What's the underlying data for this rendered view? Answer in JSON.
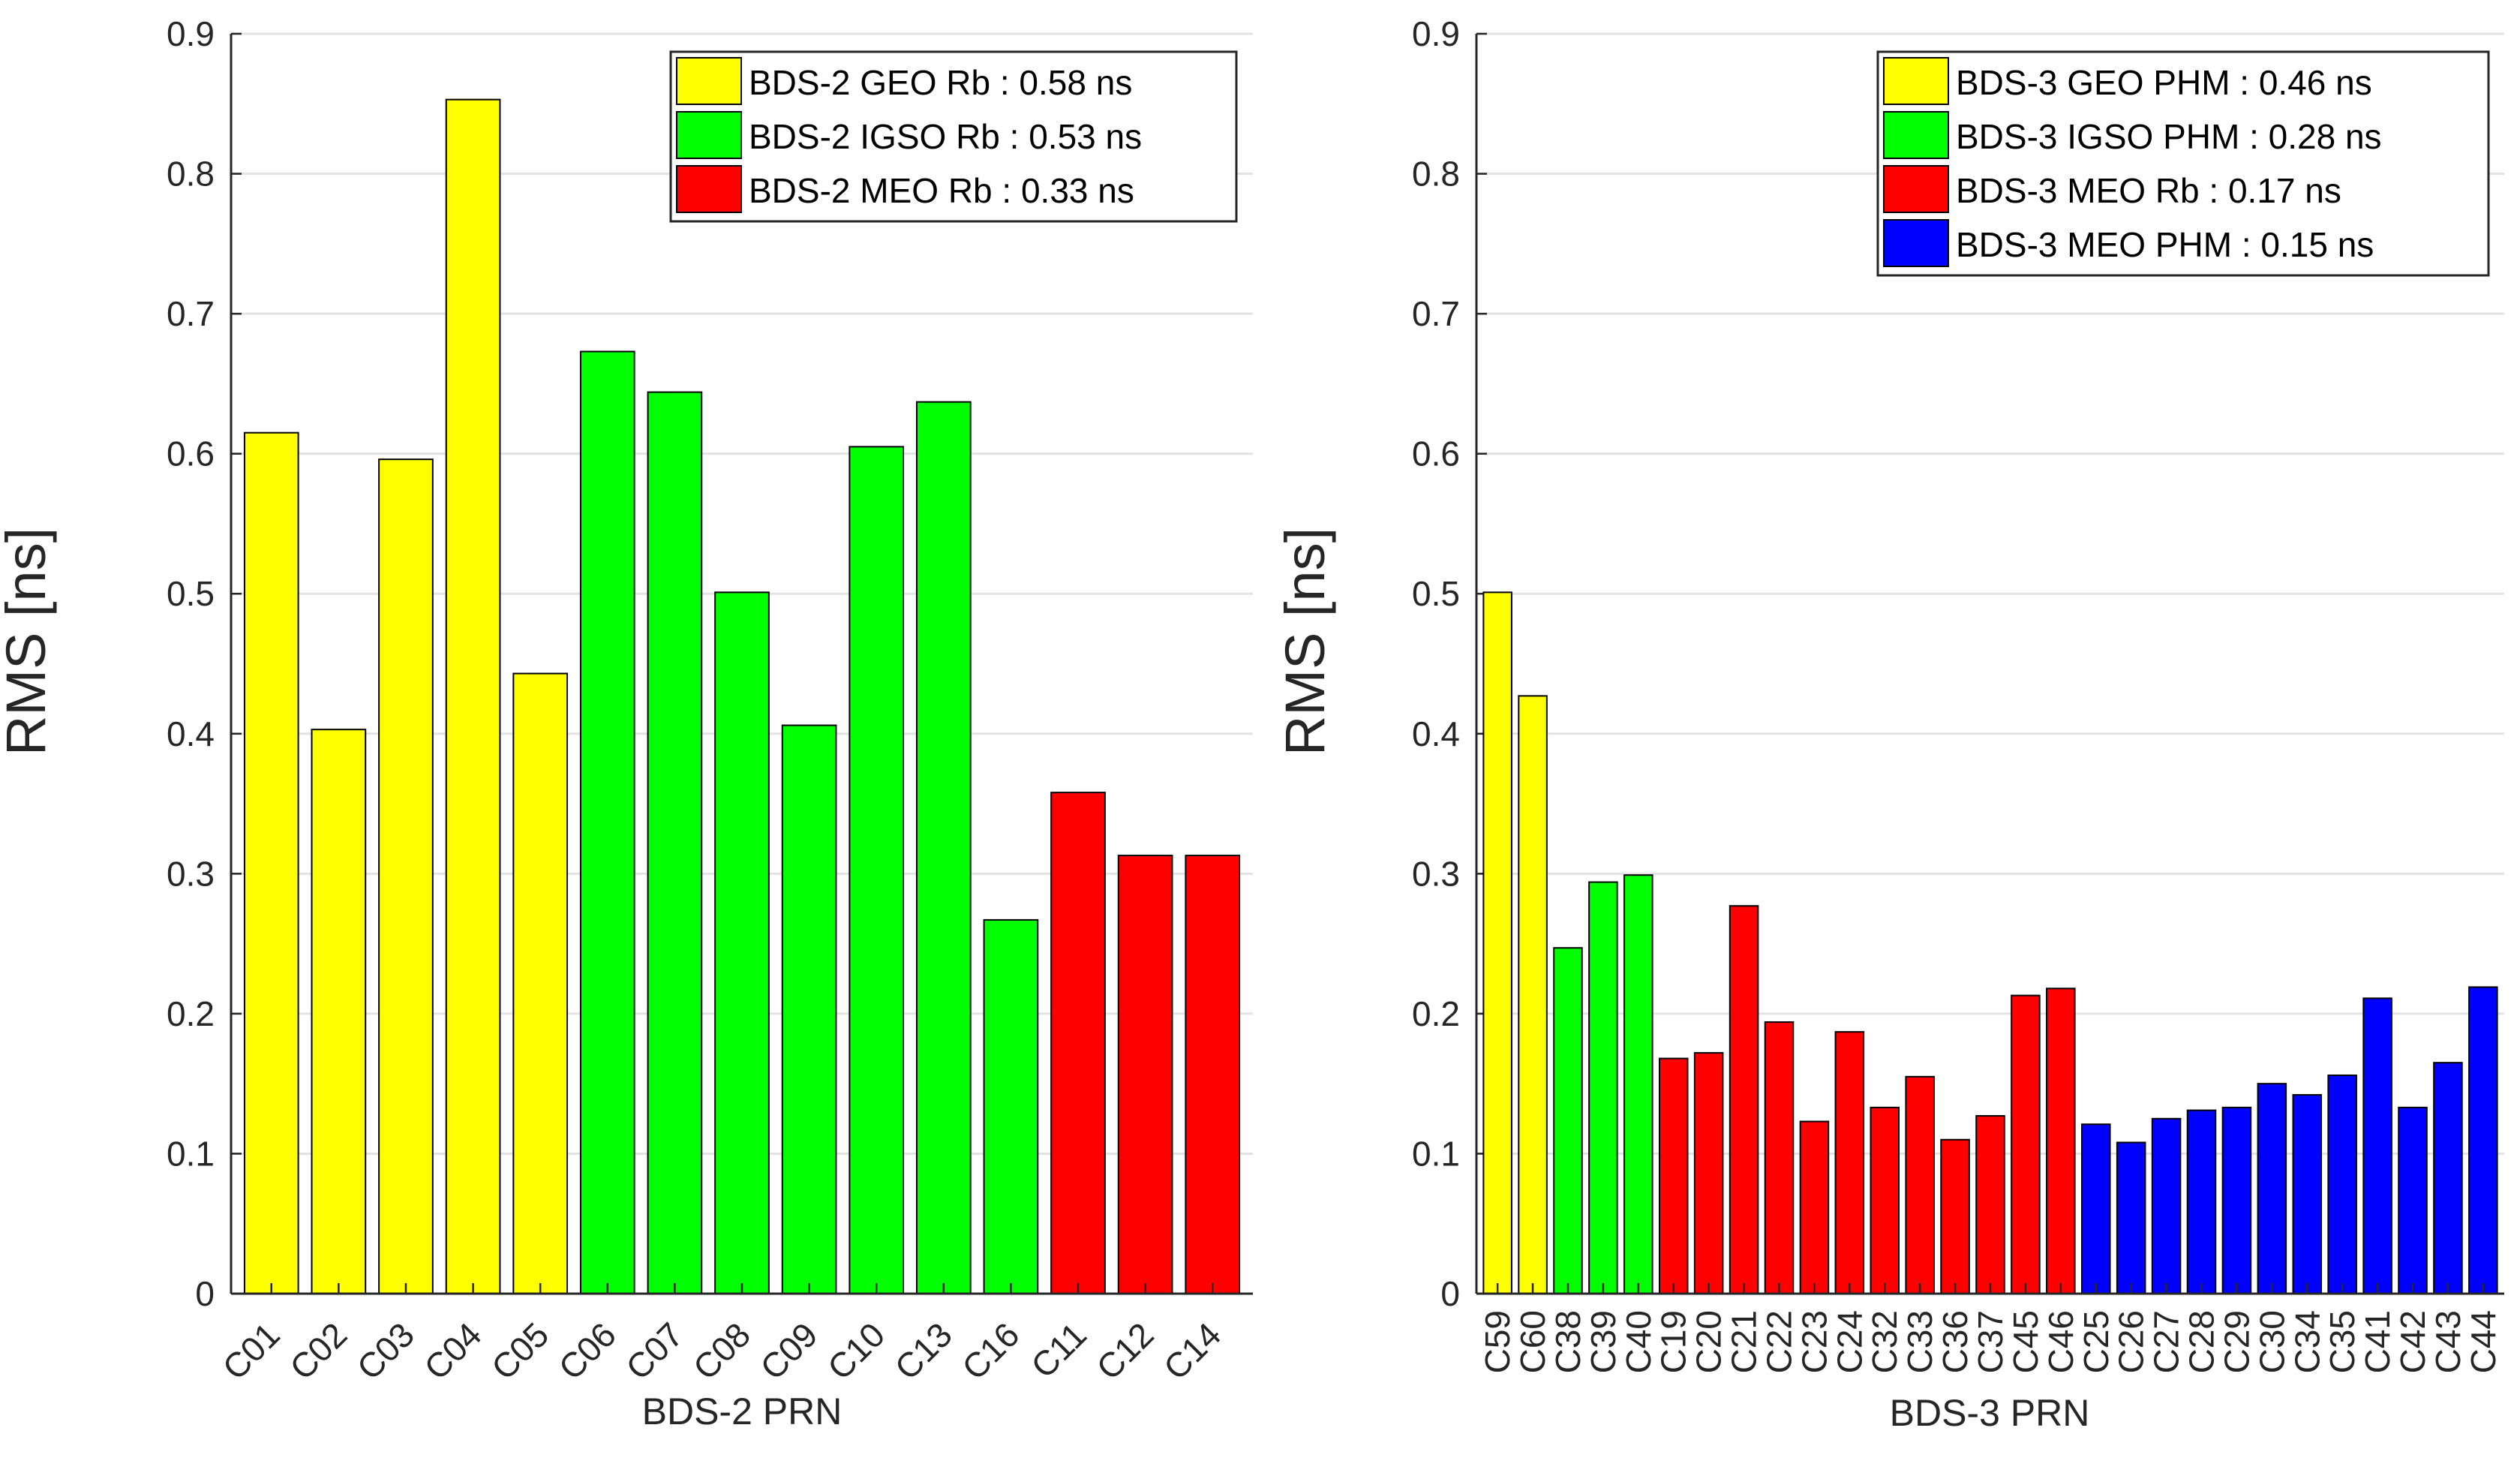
{
  "chart_data": [
    {
      "type": "bar",
      "xlabel": "BDS-2 PRN",
      "ylabel": "RMS [ns]",
      "ylim": [
        0,
        0.9
      ],
      "yticks": [
        "0",
        "0.1",
        "0.2",
        "0.3",
        "0.4",
        "0.5",
        "0.6",
        "0.7",
        "0.8",
        "0.9"
      ],
      "grid": true,
      "legend_position": "top-right",
      "categories": [
        "C01",
        "C02",
        "C03",
        "C04",
        "C05",
        "C06",
        "C07",
        "C08",
        "C09",
        "C10",
        "C13",
        "C16",
        "C11",
        "C12",
        "C14"
      ],
      "values": [
        0.615,
        0.403,
        0.596,
        0.853,
        0.443,
        0.673,
        0.644,
        0.501,
        0.406,
        0.605,
        0.637,
        0.267,
        0.358,
        0.313,
        0.313
      ],
      "groups": [
        "GEO",
        "GEO",
        "GEO",
        "GEO",
        "GEO",
        "IGSO",
        "IGSO",
        "IGSO",
        "IGSO",
        "IGSO",
        "IGSO",
        "IGSO",
        "MEO",
        "MEO",
        "MEO"
      ],
      "legend": [
        {
          "label": "BDS-2 GEO Rb : 0.58 ns",
          "group": "GEO",
          "color": "#ffff00"
        },
        {
          "label": "BDS-2 IGSO Rb : 0.53 ns",
          "group": "IGSO",
          "color": "#00ff00"
        },
        {
          "label": "BDS-2 MEO Rb : 0.33 ns",
          "group": "MEO",
          "color": "#ff0000"
        }
      ]
    },
    {
      "type": "bar",
      "xlabel": "BDS-3 PRN",
      "ylabel": "RMS [ns]",
      "ylim": [
        0,
        0.9
      ],
      "yticks": [
        "0",
        "0.1",
        "0.2",
        "0.3",
        "0.4",
        "0.5",
        "0.6",
        "0.7",
        "0.8",
        "0.9"
      ],
      "grid": true,
      "legend_position": "top-right",
      "categories": [
        "C59",
        "C60",
        "C38",
        "C39",
        "C40",
        "C19",
        "C20",
        "C21",
        "C22",
        "C23",
        "C24",
        "C32",
        "C33",
        "C36",
        "C37",
        "C45",
        "C46",
        "C25",
        "C26",
        "C27",
        "C28",
        "C29",
        "C30",
        "C34",
        "C35",
        "C41",
        "C42",
        "C43",
        "C44"
      ],
      "values": [
        0.501,
        0.427,
        0.247,
        0.294,
        0.299,
        0.168,
        0.172,
        0.277,
        0.194,
        0.123,
        0.187,
        0.133,
        0.155,
        0.11,
        0.127,
        0.213,
        0.218,
        0.121,
        0.108,
        0.125,
        0.131,
        0.133,
        0.15,
        0.142,
        0.156,
        0.211,
        0.133,
        0.165,
        0.219
      ],
      "groups": [
        "GEO",
        "GEO",
        "IGSO",
        "IGSO",
        "IGSO",
        "MEO-Rb",
        "MEO-Rb",
        "MEO-Rb",
        "MEO-Rb",
        "MEO-Rb",
        "MEO-Rb",
        "MEO-Rb",
        "MEO-Rb",
        "MEO-Rb",
        "MEO-Rb",
        "MEO-Rb",
        "MEO-Rb",
        "MEO-PHM",
        "MEO-PHM",
        "MEO-PHM",
        "MEO-PHM",
        "MEO-PHM",
        "MEO-PHM",
        "MEO-PHM",
        "MEO-PHM",
        "MEO-PHM",
        "MEO-PHM",
        "MEO-PHM",
        "MEO-PHM"
      ],
      "legend": [
        {
          "label": "BDS-3 GEO PHM : 0.46 ns",
          "group": "GEO",
          "color": "#ffff00"
        },
        {
          "label": "BDS-3 IGSO PHM : 0.28 ns",
          "group": "IGSO",
          "color": "#00ff00"
        },
        {
          "label": "BDS-3 MEO Rb : 0.17 ns",
          "group": "MEO-Rb",
          "color": "#ff0000"
        },
        {
          "label": "BDS-3 MEO PHM : 0.15 ns",
          "group": "MEO-PHM",
          "color": "#0000ff"
        }
      ]
    }
  ]
}
